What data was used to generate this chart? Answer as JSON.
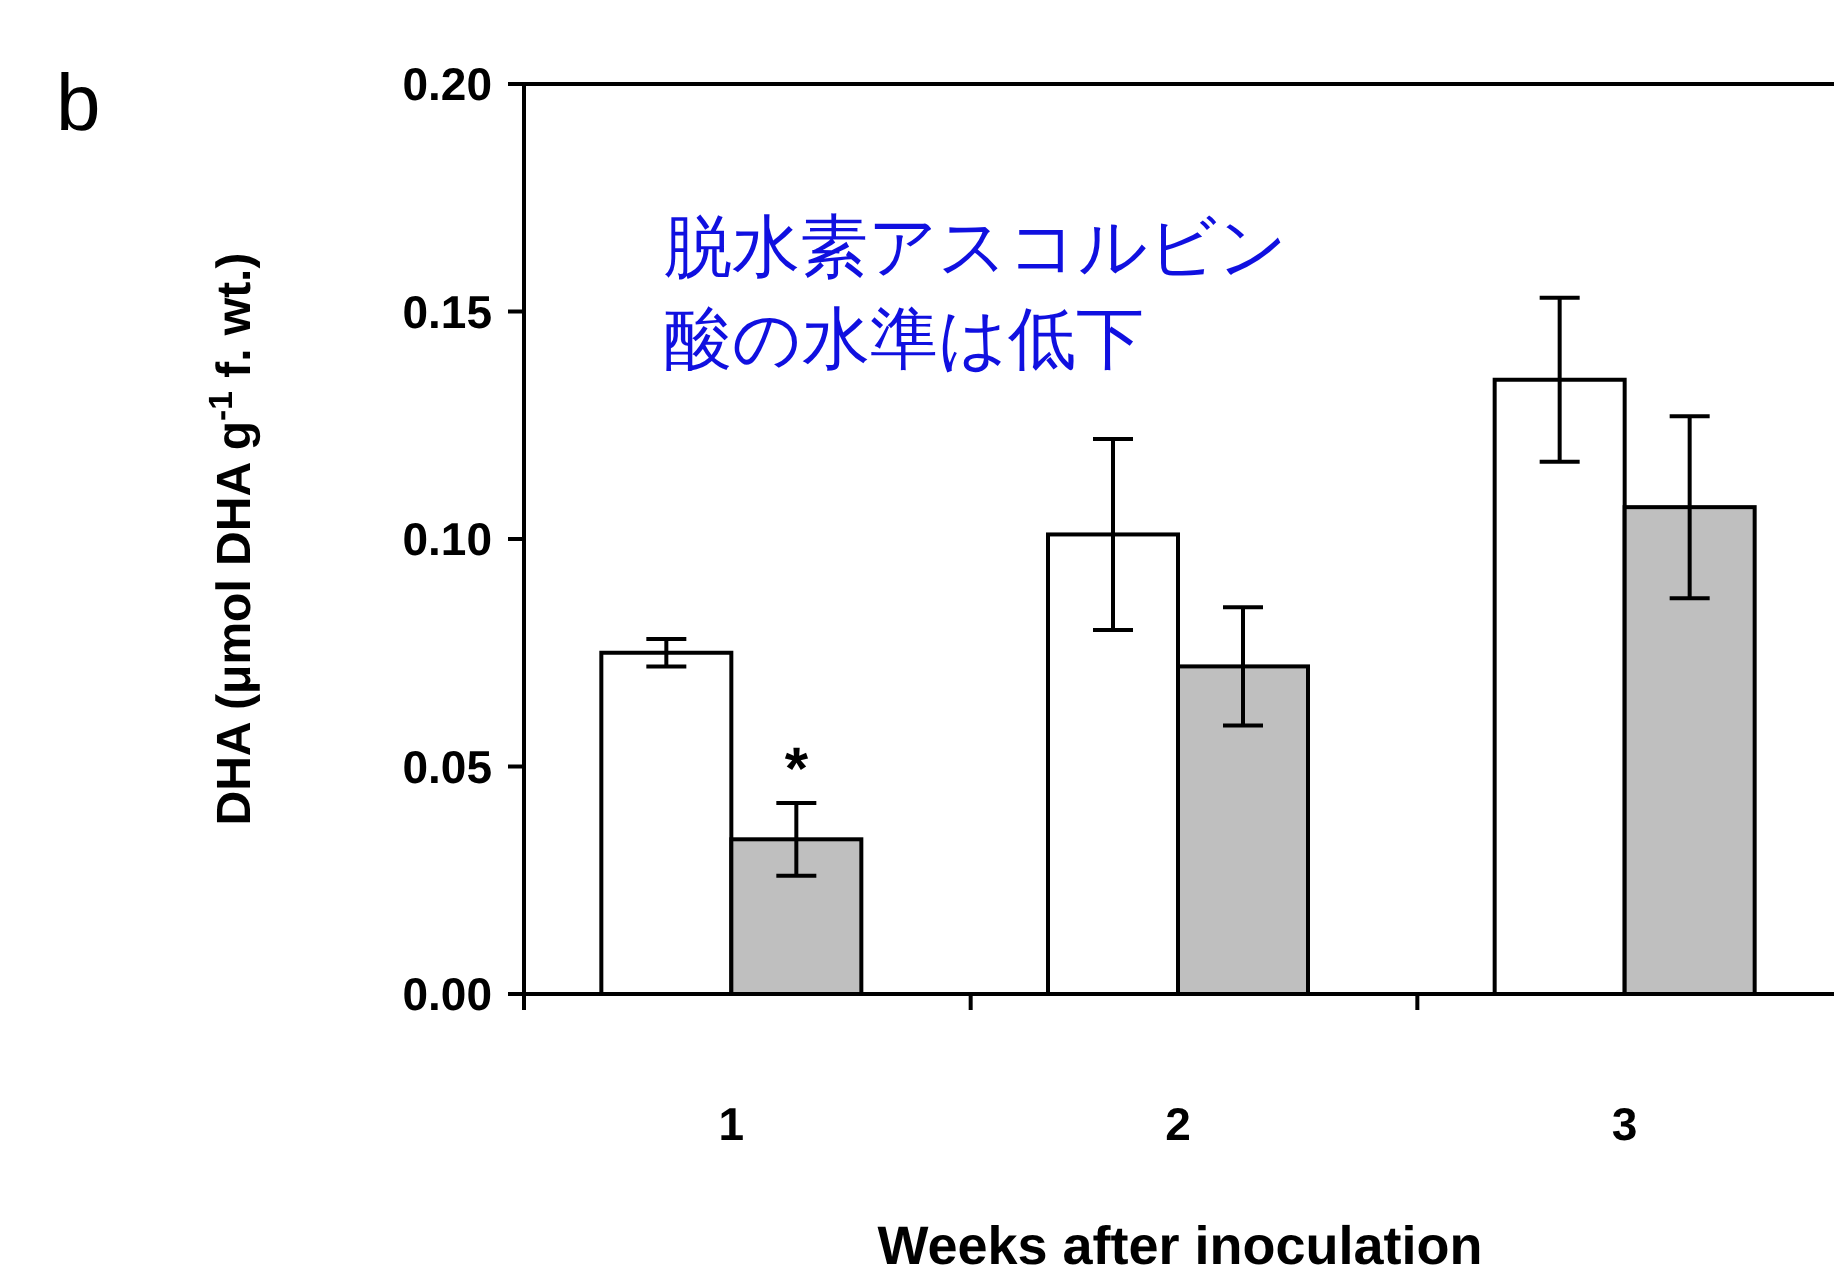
{
  "chart_data": {
    "type": "bar",
    "ylabel": "DHA (μmol DHA g$^{-1}$ f. wt.)",
    "xlabel": "Weeks after inoculation",
    "categories": [
      "1",
      "2",
      "3"
    ],
    "series": [
      {
        "color": "#ffffff",
        "values": [
          0.075,
          0.101,
          0.135
        ],
        "errors": [
          0.003,
          0.021,
          0.018
        ]
      },
      {
        "color": "#bfbfbf",
        "values": [
          0.034,
          0.072,
          0.107
        ],
        "errors": [
          0.008,
          0.013,
          0.02
        ]
      }
    ],
    "ylim": [
      0,
      0.2
    ],
    "yticks": [
      {
        "value": 0,
        "label": "0.00"
      },
      {
        "value": 0.05,
        "label": "0.05"
      },
      {
        "value": 0.1,
        "label": "0.10"
      },
      {
        "value": 0.15,
        "label": "0.15"
      },
      {
        "value": 0.2,
        "label": "0.20"
      }
    ],
    "grid": false,
    "annotations": [
      "b",
      "脱水素アスコルビン酸の水準は低下",
      {
        "text": "*",
        "x": "1",
        "y": 0.045
      }
    ]
  }
}
